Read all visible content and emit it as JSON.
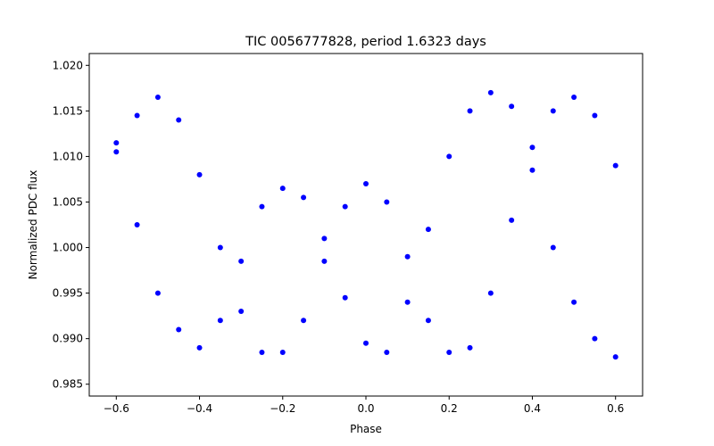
{
  "chart_data": {
    "type": "scatter",
    "title": "TIC 0056777828, period 1.6323 days",
    "xlabel": "Phase",
    "ylabel": "Normalized PDC flux",
    "xlim": [
      -0.665,
      0.665
    ],
    "ylim": [
      0.9837,
      1.0213
    ],
    "xticks": [
      -0.6,
      -0.4,
      -0.2,
      0.0,
      0.2,
      0.4,
      0.6
    ],
    "xtick_labels": [
      "−0.6",
      "−0.4",
      "−0.2",
      "0.0",
      "0.2",
      "0.4",
      "0.6"
    ],
    "yticks": [
      0.985,
      0.99,
      0.995,
      1.0,
      1.005,
      1.01,
      1.015,
      1.02
    ],
    "ytick_labels": [
      "0.985",
      "0.990",
      "0.995",
      "1.000",
      "1.005",
      "1.010",
      "1.015",
      "1.020"
    ],
    "grid": false,
    "marker_color": "#0000ff",
    "series": [
      {
        "x": [
          -0.6,
          -0.55,
          -0.5,
          -0.45,
          -0.4,
          -0.35,
          -0.3,
          -0.25,
          -0.2,
          -0.15,
          -0.1,
          -0.05,
          0.0,
          0.05,
          0.1,
          0.15,
          0.2,
          0.25,
          0.3,
          0.35,
          0.4,
          0.45,
          0.5,
          0.55,
          0.6
        ],
        "y": [
          1.0105,
          1.0025,
          0.995,
          0.991,
          0.989,
          0.992,
          0.9985,
          1.0045,
          1.0065,
          1.0055,
          1.001,
          0.9945,
          0.9895,
          0.9885,
          0.994,
          1.002,
          1.01,
          1.015,
          1.017,
          1.0155,
          1.0085,
          1.0,
          0.994,
          0.99,
          0.988
        ]
      },
      {
        "x": [
          -0.6,
          -0.55,
          -0.5,
          -0.45,
          -0.4,
          -0.35,
          -0.3,
          -0.25,
          -0.2,
          -0.15,
          -0.1,
          -0.05,
          0.0,
          0.05,
          0.1,
          0.15,
          0.2,
          0.25,
          0.3,
          0.35,
          0.4,
          0.45,
          0.5,
          0.55,
          0.6
        ],
        "y": [
          1.0115,
          1.0145,
          1.0165,
          1.014,
          1.008,
          1.0,
          0.993,
          0.9885,
          0.9885,
          0.992,
          0.9985,
          1.0045,
          1.007,
          1.005,
          0.999,
          0.992,
          0.9885,
          0.989,
          0.995,
          1.003,
          1.011,
          1.015,
          1.0165,
          1.0145,
          1.009
        ]
      }
    ]
  }
}
